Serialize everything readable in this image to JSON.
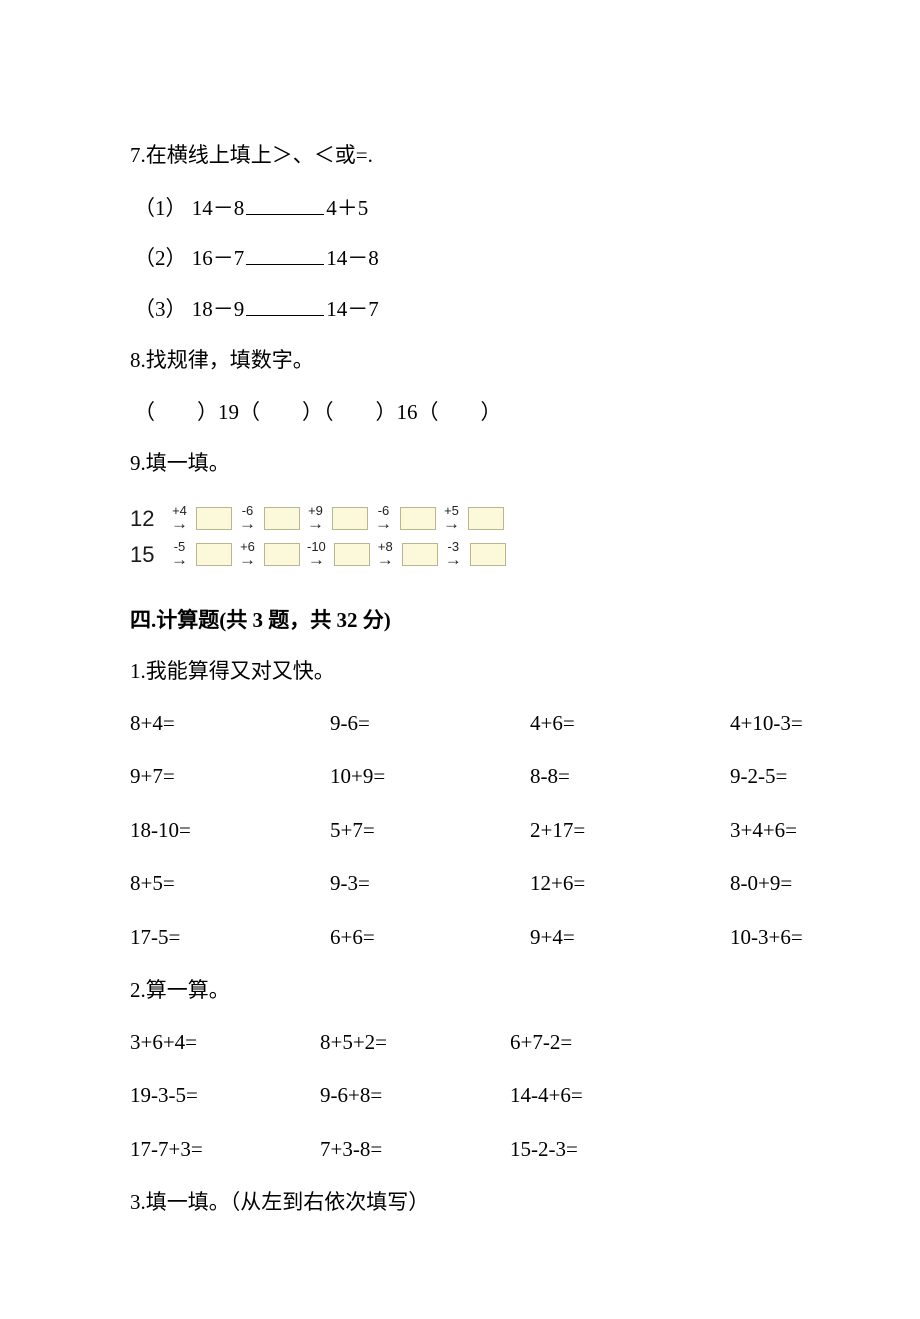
{
  "q7": {
    "prompt": "7.在横线上填上＞、＜或=.",
    "items": [
      {
        "idx": "（1）",
        "left": "14－8",
        "right": "4＋5"
      },
      {
        "idx": "（2）",
        "left": "16－7",
        "right": "14－8"
      },
      {
        "idx": "（3）",
        "left": "18－9",
        "right": "14－7"
      }
    ]
  },
  "q8": {
    "prompt": "8.找规律，填数字。",
    "sequence": "（　　）19（　　）（　　）16（　　）"
  },
  "q9": {
    "prompt": "9.填一填。",
    "chains": [
      {
        "start": "12",
        "ops": [
          "+4",
          "-6",
          "+9",
          "-6",
          "+5"
        ]
      },
      {
        "start": "15",
        "ops": [
          "-5",
          "+6",
          "-10",
          "+8",
          "-3"
        ]
      }
    ],
    "box_bg": "#fcf9da",
    "box_border": "#b9b68e"
  },
  "section4": {
    "title": "四.计算题(共 3 题，共 32 分)"
  },
  "p1": {
    "prompt": "1.我能算得又对又快。",
    "rows": [
      [
        "8+4=",
        "9-6=",
        "4+6=",
        "4+10-3="
      ],
      [
        "9+7=",
        "10+9=",
        "8-8=",
        "9-2-5="
      ],
      [
        "18-10=",
        "5+7=",
        "2+17=",
        "3+4+6="
      ],
      [
        "8+5=",
        "9-3=",
        "12+6=",
        "8-0+9="
      ],
      [
        "17-5=",
        "6+6=",
        "9+4=",
        "10-3+6="
      ]
    ]
  },
  "p2": {
    "prompt": "2.算一算。",
    "rows": [
      [
        "3+6+4=",
        "8+5+2=",
        "6+7-2="
      ],
      [
        "19-3-5=",
        "9-6+8=",
        "14-4+6="
      ],
      [
        "17-7+3=",
        "7+3-8=",
        "15-2-3="
      ]
    ]
  },
  "p3": {
    "prompt": "3.填一填。（从左到右依次填写）"
  },
  "colors": {
    "text": "#000000",
    "background": "#ffffff"
  },
  "font": {
    "body_size_pt": 16,
    "body_family": "SimSun"
  }
}
